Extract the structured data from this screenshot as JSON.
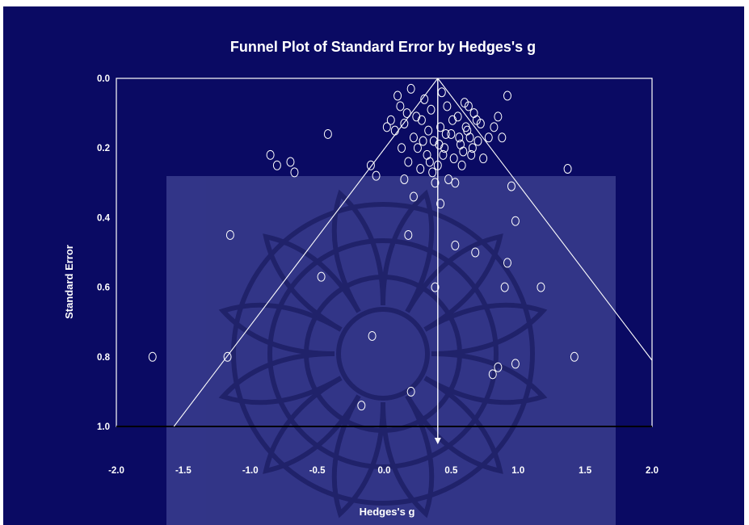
{
  "chart_data": {
    "type": "scatter",
    "title": "Funnel Plot of Standard Error by Hedges's g",
    "xlabel": "Hedges's g",
    "ylabel": "Standard Error",
    "xlim": [
      -2.0,
      2.0
    ],
    "ylim": [
      0.0,
      1.0
    ],
    "y_inverted": true,
    "x_ticks": [
      "-2.0",
      "-1.5",
      "-1.0",
      "-0.5",
      "0.0",
      "0.5",
      "1.0",
      "1.5",
      "2.0"
    ],
    "y_ticks": [
      "0.0",
      "0.2",
      "0.4",
      "0.6",
      "0.8",
      "1.0"
    ],
    "grid": false,
    "legend": "none",
    "mean_effect": 0.4,
    "funnel_lines": [
      {
        "x": [
          0.4,
          -1.57
        ],
        "y": [
          0.0,
          1.0
        ]
      },
      {
        "x": [
          0.4,
          2.0
        ],
        "y": [
          0.0,
          0.81
        ]
      }
    ],
    "points": [
      {
        "x": -1.73,
        "y": 0.8
      },
      {
        "x": -1.17,
        "y": 0.8
      },
      {
        "x": -1.15,
        "y": 0.45
      },
      {
        "x": -0.85,
        "y": 0.22
      },
      {
        "x": -0.8,
        "y": 0.25
      },
      {
        "x": -0.7,
        "y": 0.24
      },
      {
        "x": -0.67,
        "y": 0.27
      },
      {
        "x": -0.42,
        "y": 0.16
      },
      {
        "x": -0.47,
        "y": 0.57
      },
      {
        "x": -0.1,
        "y": 0.25
      },
      {
        "x": -0.06,
        "y": 0.28
      },
      {
        "x": -0.09,
        "y": 0.74
      },
      {
        "x": -0.17,
        "y": 0.94
      },
      {
        "x": 0.2,
        "y": 0.9
      },
      {
        "x": 0.15,
        "y": 0.29
      },
      {
        "x": 0.18,
        "y": 0.45
      },
      {
        "x": 0.22,
        "y": 0.34
      },
      {
        "x": 0.38,
        "y": 0.6
      },
      {
        "x": 0.42,
        "y": 0.36
      },
      {
        "x": 0.53,
        "y": 0.48
      },
      {
        "x": 0.68,
        "y": 0.5
      },
      {
        "x": 0.9,
        "y": 0.6
      },
      {
        "x": 0.92,
        "y": 0.53
      },
      {
        "x": 0.95,
        "y": 0.31
      },
      {
        "x": 0.98,
        "y": 0.41
      },
      {
        "x": 1.17,
        "y": 0.6
      },
      {
        "x": 1.37,
        "y": 0.26
      },
      {
        "x": 1.42,
        "y": 0.8
      },
      {
        "x": 0.98,
        "y": 0.82
      },
      {
        "x": 0.85,
        "y": 0.83
      },
      {
        "x": 0.81,
        "y": 0.85
      },
      {
        "x": 0.92,
        "y": 0.05
      },
      {
        "x": 0.85,
        "y": 0.11
      },
      {
        "x": 0.82,
        "y": 0.14
      },
      {
        "x": 0.78,
        "y": 0.17
      },
      {
        "x": 0.88,
        "y": 0.17
      },
      {
        "x": 0.2,
        "y": 0.03
      },
      {
        "x": 0.05,
        "y": 0.12
      },
      {
        "x": 0.08,
        "y": 0.15
      },
      {
        "x": 0.1,
        "y": 0.05
      },
      {
        "x": 0.12,
        "y": 0.08
      },
      {
        "x": 0.15,
        "y": 0.13
      },
      {
        "x": 0.17,
        "y": 0.1
      },
      {
        "x": 0.22,
        "y": 0.17
      },
      {
        "x": 0.25,
        "y": 0.2
      },
      {
        "x": 0.28,
        "y": 0.12
      },
      {
        "x": 0.3,
        "y": 0.06
      },
      {
        "x": 0.32,
        "y": 0.22
      },
      {
        "x": 0.35,
        "y": 0.09
      },
      {
        "x": 0.37,
        "y": 0.18
      },
      {
        "x": 0.4,
        "y": 0.25
      },
      {
        "x": 0.42,
        "y": 0.14
      },
      {
        "x": 0.45,
        "y": 0.2
      },
      {
        "x": 0.47,
        "y": 0.08
      },
      {
        "x": 0.5,
        "y": 0.16
      },
      {
        "x": 0.52,
        "y": 0.23
      },
      {
        "x": 0.55,
        "y": 0.11
      },
      {
        "x": 0.57,
        "y": 0.19
      },
      {
        "x": 0.6,
        "y": 0.07
      },
      {
        "x": 0.62,
        "y": 0.15
      },
      {
        "x": 0.65,
        "y": 0.22
      },
      {
        "x": 0.67,
        "y": 0.1
      },
      {
        "x": 0.7,
        "y": 0.18
      },
      {
        "x": 0.72,
        "y": 0.13
      },
      {
        "x": 0.02,
        "y": 0.14
      },
      {
        "x": 0.13,
        "y": 0.2
      },
      {
        "x": 0.18,
        "y": 0.24
      },
      {
        "x": 0.27,
        "y": 0.26
      },
      {
        "x": 0.33,
        "y": 0.15
      },
      {
        "x": 0.36,
        "y": 0.27
      },
      {
        "x": 0.43,
        "y": 0.04
      },
      {
        "x": 0.48,
        "y": 0.29
      },
      {
        "x": 0.53,
        "y": 0.3
      },
      {
        "x": 0.58,
        "y": 0.25
      },
      {
        "x": 0.63,
        "y": 0.08
      },
      {
        "x": 0.66,
        "y": 0.2
      },
      {
        "x": 0.69,
        "y": 0.12
      },
      {
        "x": 0.74,
        "y": 0.23
      },
      {
        "x": 0.38,
        "y": 0.3
      },
      {
        "x": 0.44,
        "y": 0.22
      },
      {
        "x": 0.51,
        "y": 0.12
      },
      {
        "x": 0.56,
        "y": 0.17
      },
      {
        "x": 0.61,
        "y": 0.14
      },
      {
        "x": 0.24,
        "y": 0.11
      },
      {
        "x": 0.29,
        "y": 0.18
      },
      {
        "x": 0.34,
        "y": 0.24
      },
      {
        "x": 0.41,
        "y": 0.19
      },
      {
        "x": 0.46,
        "y": 0.16
      },
      {
        "x": 0.59,
        "y": 0.21
      },
      {
        "x": 0.64,
        "y": 0.17
      }
    ]
  },
  "colors": {
    "background": "#0a0a63",
    "panel": "#3a3d8e",
    "foreground": "#ffffff"
  }
}
